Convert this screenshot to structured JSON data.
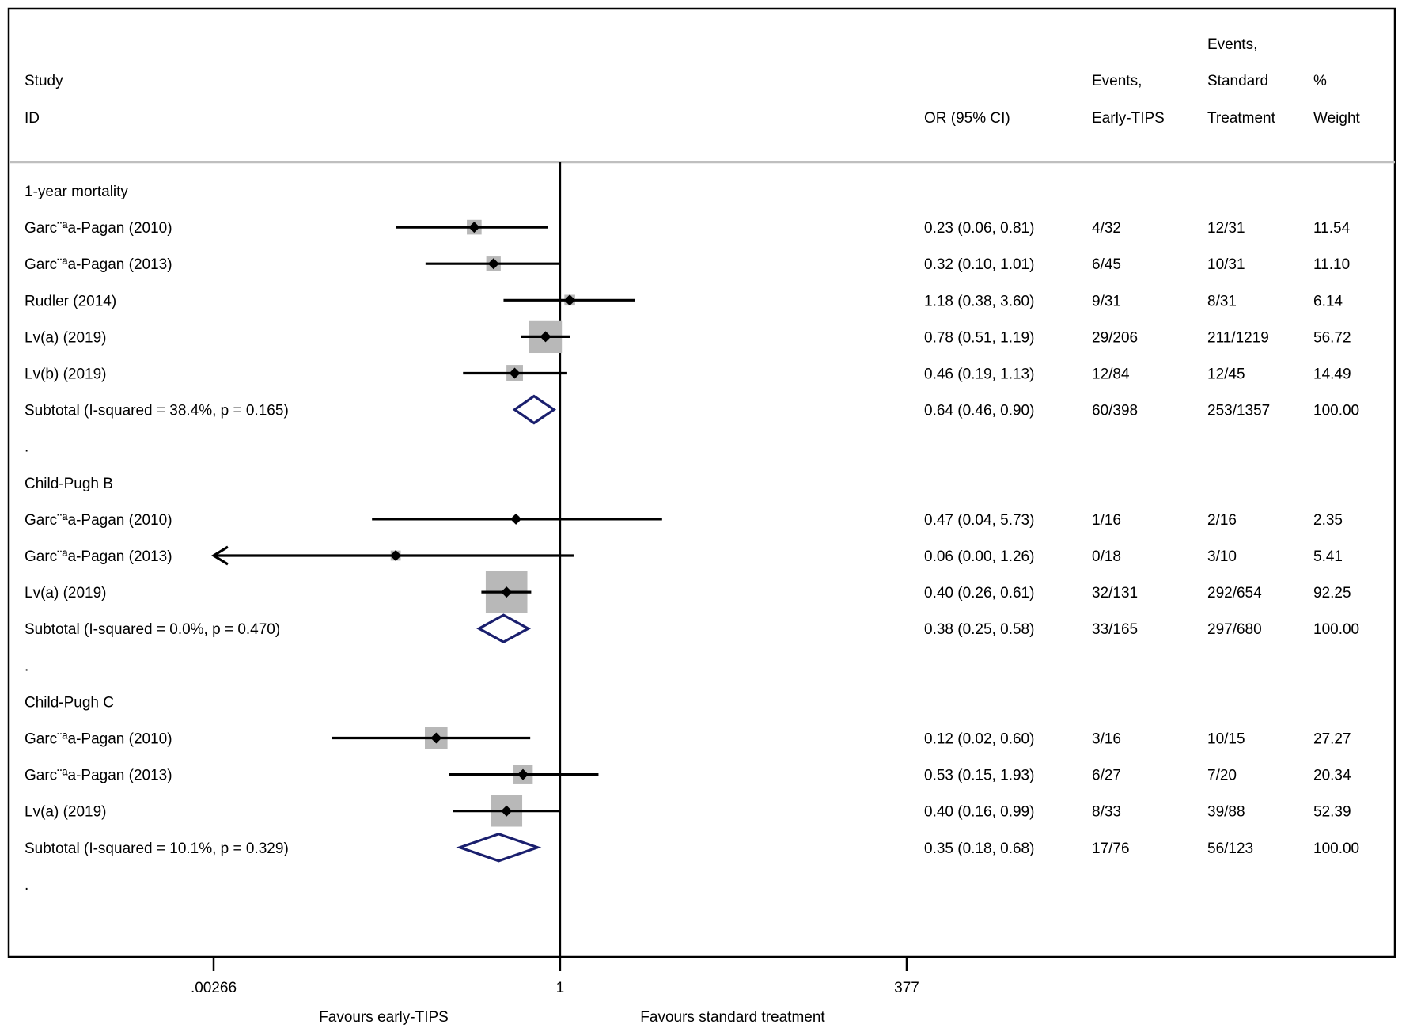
{
  "chart_data": {
    "type": "forest",
    "columns": {
      "study_l1": "Study",
      "study_l2": "ID",
      "or_label": "OR (95% CI)",
      "early_l1": "Events,",
      "early_l2": "Early-TIPS",
      "std_l1": "Events,",
      "std_l2": "Standard",
      "std_l3": "Treatment",
      "weight_l1": "%",
      "weight_l2": "Weight"
    },
    "x_axis": {
      "scale": "log",
      "ticks": [
        ".00266",
        "1",
        "377"
      ],
      "range": [
        0.00266,
        377
      ],
      "reference": 1,
      "left_label": "Favours early-TIPS",
      "right_label": "Favours standard treatment"
    },
    "rows": [
      {
        "type": "group",
        "label": "1-year mortality"
      },
      {
        "type": "study",
        "label": "Garc¨ªa-Pagan (2010)",
        "or": 0.23,
        "lo": 0.06,
        "hi": 0.81,
        "or_text": "0.23 (0.06, 0.81)",
        "early": "4/32",
        "standard": "12/31",
        "weight": "11.54",
        "wpct": 11.54
      },
      {
        "type": "study",
        "label": "Garc¨ªa-Pagan (2013)",
        "or": 0.32,
        "lo": 0.1,
        "hi": 1.01,
        "or_text": "0.32 (0.10, 1.01)",
        "early": "6/45",
        "standard": "10/31",
        "weight": "11.10",
        "wpct": 11.1
      },
      {
        "type": "study",
        "label": "Rudler (2014)",
        "or": 1.18,
        "lo": 0.38,
        "hi": 3.6,
        "or_text": "1.18 (0.38, 3.60)",
        "early": "9/31",
        "standard": "8/31",
        "weight": "6.14",
        "wpct": 6.14
      },
      {
        "type": "study",
        "label": "Lv(a) (2019)",
        "or": 0.78,
        "lo": 0.51,
        "hi": 1.19,
        "or_text": "0.78 (0.51, 1.19)",
        "early": "29/206",
        "standard": "211/1219",
        "weight": "56.72",
        "wpct": 56.72
      },
      {
        "type": "study",
        "label": "Lv(b) (2019)",
        "or": 0.46,
        "lo": 0.19,
        "hi": 1.13,
        "or_text": "0.46 (0.19, 1.13)",
        "early": "12/84",
        "standard": "12/45",
        "weight": "14.49",
        "wpct": 14.49
      },
      {
        "type": "subtotal",
        "label": "Subtotal  (I-squared = 38.4%, p = 0.165)",
        "or": 0.64,
        "lo": 0.46,
        "hi": 0.9,
        "or_text": "0.64 (0.46, 0.90)",
        "early": "60/398",
        "standard": "253/1357",
        "weight": "100.00"
      },
      {
        "type": "spacer",
        "label": "."
      },
      {
        "type": "group",
        "label": "Child-Pugh B"
      },
      {
        "type": "study",
        "label": "Garc¨ªa-Pagan (2010)",
        "or": 0.47,
        "lo": 0.04,
        "hi": 5.73,
        "or_text": "0.47 (0.04, 5.73)",
        "early": "1/16",
        "standard": "2/16",
        "weight": "2.35",
        "wpct": 2.35
      },
      {
        "type": "study",
        "label": "Garc¨ªa-Pagan (2013)",
        "or": 0.06,
        "lo": 0.0,
        "hi": 1.26,
        "or_text": "0.06 (0.00, 1.26)",
        "early": "0/18",
        "standard": "3/10",
        "weight": "5.41",
        "wpct": 5.41,
        "arrow_left": true
      },
      {
        "type": "study",
        "label": "Lv(a) (2019)",
        "or": 0.4,
        "lo": 0.26,
        "hi": 0.61,
        "or_text": "0.40 (0.26, 0.61)",
        "early": "32/131",
        "standard": "292/654",
        "weight": "92.25",
        "wpct": 92.25
      },
      {
        "type": "subtotal",
        "label": "Subtotal  (I-squared = 0.0%, p = 0.470)",
        "or": 0.38,
        "lo": 0.25,
        "hi": 0.58,
        "or_text": "0.38 (0.25, 0.58)",
        "early": "33/165",
        "standard": "297/680",
        "weight": "100.00"
      },
      {
        "type": "spacer",
        "label": "."
      },
      {
        "type": "group",
        "label": "Child-Pugh C"
      },
      {
        "type": "study",
        "label": "Garc¨ªa-Pagan (2010)",
        "or": 0.12,
        "lo": 0.02,
        "hi": 0.6,
        "or_text": "0.12 (0.02, 0.60)",
        "early": "3/16",
        "standard": "10/15",
        "weight": "27.27",
        "wpct": 27.27
      },
      {
        "type": "study",
        "label": "Garc¨ªa-Pagan (2013)",
        "or": 0.53,
        "lo": 0.15,
        "hi": 1.93,
        "or_text": "0.53 (0.15, 1.93)",
        "early": "6/27",
        "standard": "7/20",
        "weight": "20.34",
        "wpct": 20.34
      },
      {
        "type": "study",
        "label": "Lv(a) (2019)",
        "or": 0.4,
        "lo": 0.16,
        "hi": 0.99,
        "or_text": "0.40 (0.16, 0.99)",
        "early": "8/33",
        "standard": "39/88",
        "weight": "52.39",
        "wpct": 52.39
      },
      {
        "type": "subtotal",
        "label": "Subtotal  (I-squared = 10.1%, p = 0.329)",
        "or": 0.35,
        "lo": 0.18,
        "hi": 0.68,
        "or_text": "0.35 (0.18, 0.68)",
        "early": "17/76",
        "standard": "56/123",
        "weight": "100.00"
      },
      {
        "type": "spacer",
        "label": "."
      }
    ],
    "colors": {
      "weight_box": "#b8b8b8",
      "diamond": "#1a1f6e",
      "line": "#000000",
      "separator": "#bfbfbf"
    }
  }
}
